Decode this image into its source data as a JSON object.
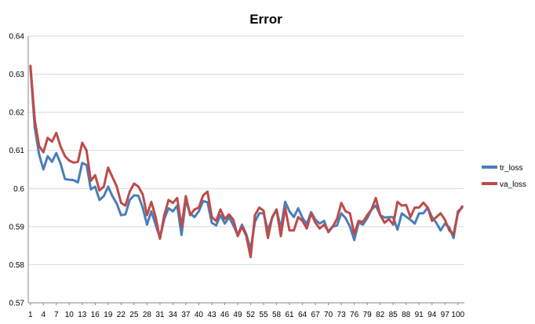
{
  "chart_data": {
    "type": "line",
    "title": "Error",
    "xlabel": "",
    "ylabel": "",
    "ylim": [
      0.57,
      0.64
    ],
    "yticks": [
      "0.57",
      "0.58",
      "0.59",
      "0.6",
      "0.61",
      "0.62",
      "0.63",
      "0.64"
    ],
    "xtick_labels": [
      "1",
      "4",
      "7",
      "10",
      "13",
      "16",
      "19",
      "22",
      "25",
      "28",
      "31",
      "34",
      "37",
      "40",
      "43",
      "46",
      "49",
      "52",
      "55",
      "58",
      "61",
      "64",
      "67",
      "70",
      "73",
      "76",
      "79",
      "82",
      "85",
      "88",
      "91",
      "94",
      "97",
      "100"
    ],
    "grid": "horizontal",
    "legend": "right",
    "series": [
      {
        "name": "tr_loss",
        "color": "#4A7EBB",
        "values": [
          0.6318,
          0.616,
          0.609,
          0.605,
          0.6085,
          0.607,
          0.6093,
          0.6065,
          0.6025,
          0.6023,
          0.6022,
          0.6016,
          0.6067,
          0.6062,
          0.5998,
          0.6005,
          0.597,
          0.598,
          0.6005,
          0.598,
          0.596,
          0.593,
          0.5932,
          0.597,
          0.5982,
          0.5981,
          0.595,
          0.5905,
          0.594,
          0.5905,
          0.587,
          0.592,
          0.5948,
          0.594,
          0.5955,
          0.5878,
          0.597,
          0.5935,
          0.5925,
          0.594,
          0.5967,
          0.5964,
          0.591,
          0.5903,
          0.593,
          0.5908,
          0.5925,
          0.5903,
          0.5878,
          0.5905,
          0.588,
          0.584,
          0.5913,
          0.5935,
          0.5935,
          0.589,
          0.5923,
          0.5945,
          0.5895,
          0.5965,
          0.594,
          0.5925,
          0.5948,
          0.5923,
          0.5907,
          0.5938,
          0.5918,
          0.5908,
          0.5915,
          0.5885,
          0.59,
          0.5903,
          0.5935,
          0.5922,
          0.59,
          0.5865,
          0.591,
          0.5905,
          0.5922,
          0.5945,
          0.5955,
          0.593,
          0.5924,
          0.5925,
          0.5925,
          0.5892,
          0.5935,
          0.5926,
          0.5918,
          0.5908,
          0.5935,
          0.5935,
          0.595,
          0.5925,
          0.591,
          0.589,
          0.5908,
          0.5898,
          0.587,
          0.594,
          0.595
        ]
      },
      {
        "name": "va_loss",
        "color": "#BE4B48",
        "values": [
          0.6322,
          0.618,
          0.6112,
          0.6095,
          0.6133,
          0.6123,
          0.6146,
          0.611,
          0.6085,
          0.6073,
          0.6068,
          0.607,
          0.612,
          0.61,
          0.602,
          0.6035,
          0.5995,
          0.6005,
          0.6055,
          0.603,
          0.6005,
          0.5962,
          0.5955,
          0.5992,
          0.6013,
          0.6005,
          0.5985,
          0.593,
          0.5965,
          0.5925,
          0.5868,
          0.593,
          0.597,
          0.5962,
          0.5975,
          0.59,
          0.598,
          0.593,
          0.5945,
          0.595,
          0.5982,
          0.5992,
          0.5925,
          0.5915,
          0.5945,
          0.592,
          0.5932,
          0.5918,
          0.5875,
          0.59,
          0.5875,
          0.582,
          0.593,
          0.595,
          0.5942,
          0.587,
          0.5925,
          0.5945,
          0.5875,
          0.595,
          0.589,
          0.589,
          0.5925,
          0.5915,
          0.5895,
          0.5935,
          0.591,
          0.5895,
          0.5905,
          0.5888,
          0.59,
          0.592,
          0.5962,
          0.594,
          0.5935,
          0.588,
          0.5915,
          0.5912,
          0.593,
          0.5945,
          0.5975,
          0.593,
          0.591,
          0.592,
          0.5905,
          0.5965,
          0.5955,
          0.5957,
          0.5925,
          0.595,
          0.595,
          0.5963,
          0.595,
          0.5915,
          0.5925,
          0.5935,
          0.5918,
          0.589,
          0.588,
          0.5935,
          0.5953
        ]
      }
    ]
  }
}
